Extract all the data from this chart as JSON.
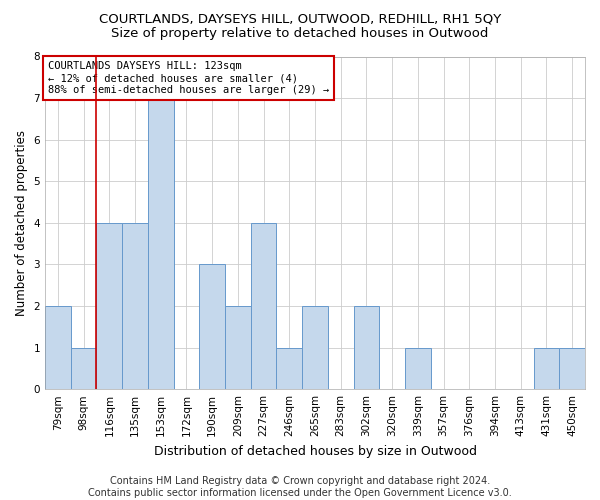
{
  "title": "COURTLANDS, DAYSEYS HILL, OUTWOOD, REDHILL, RH1 5QY",
  "subtitle": "Size of property relative to detached houses in Outwood",
  "xlabel": "Distribution of detached houses by size in Outwood",
  "ylabel": "Number of detached properties",
  "footer": "Contains HM Land Registry data © Crown copyright and database right 2024.\nContains public sector information licensed under the Open Government Licence v3.0.",
  "annotation_title": "COURTLANDS DAYSEYS HILL: 123sqm",
  "annotation_line1": "← 12% of detached houses are smaller (4)",
  "annotation_line2": "88% of semi-detached houses are larger (29) →",
  "bar_labels": [
    "79sqm",
    "98sqm",
    "116sqm",
    "135sqm",
    "153sqm",
    "172sqm",
    "190sqm",
    "209sqm",
    "227sqm",
    "246sqm",
    "265sqm",
    "283sqm",
    "302sqm",
    "320sqm",
    "339sqm",
    "357sqm",
    "376sqm",
    "394sqm",
    "413sqm",
    "431sqm",
    "450sqm"
  ],
  "bar_values": [
    2,
    1,
    4,
    4,
    7,
    0,
    3,
    2,
    4,
    1,
    2,
    0,
    2,
    0,
    1,
    0,
    0,
    0,
    0,
    1,
    1
  ],
  "bar_color": "#c5d8ec",
  "bar_edge_color": "#6699cc",
  "highlight_index": 2,
  "highlight_line_color": "#cc0000",
  "ylim": [
    0,
    8
  ],
  "yticks": [
    0,
    1,
    2,
    3,
    4,
    5,
    6,
    7,
    8
  ],
  "background_color": "#ffffff",
  "plot_bg_color": "#ffffff",
  "grid_color": "#cccccc",
  "annotation_box_color": "#ffffff",
  "annotation_box_edge": "#cc0000",
  "title_fontsize": 9.5,
  "subtitle_fontsize": 9.5,
  "xlabel_fontsize": 9,
  "ylabel_fontsize": 8.5,
  "tick_fontsize": 7.5,
  "annotation_fontsize": 7.5,
  "footer_fontsize": 7
}
